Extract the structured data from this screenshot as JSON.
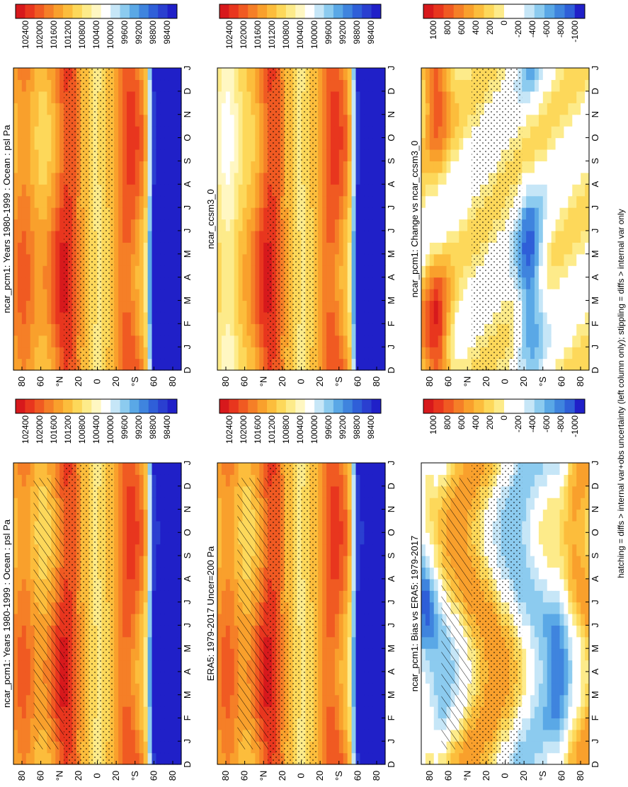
{
  "figure": {
    "footer": "hatching = diffs > internal var+obs uncertainty (left column only); stippling = diffs > internal var only"
  },
  "colors": {
    "abs_scale": [
      "#d7191c",
      "#e8361e",
      "#f05a22",
      "#f57f27",
      "#f9a02c",
      "#fcbd3c",
      "#fdd85a",
      "#fdeb8a",
      "#fff7c2",
      "#ffffff",
      "#c6e6f7",
      "#8ccbef",
      "#5aa8e6",
      "#3f84de",
      "#2f5fd8",
      "#2a3fd0",
      "#2020c8"
    ],
    "diff_scale": [
      "#d7191c",
      "#e8361e",
      "#f05a22",
      "#f57f27",
      "#f9a02c",
      "#fcbd3c",
      "#fdd85a",
      "#fdeb8a",
      "#ffffff",
      "#ffffff",
      "#c6e6f7",
      "#8ccbef",
      "#5aa8e6",
      "#3f84de",
      "#2f5fd8",
      "#2020c8"
    ],
    "text": "#000000",
    "frame": "#000000"
  },
  "chart_data": [
    {
      "id": "p1",
      "type": "heatmap",
      "title": "ncar_pcm1: Years 1980-1999 : Ocean : psl Pa",
      "xlabel": "",
      "ylabel": "",
      "x_ticks": [
        "D",
        "J",
        "F",
        "M",
        "A",
        "M",
        "J",
        "J",
        "A",
        "S",
        "O",
        "N",
        "D",
        "J"
      ],
      "y_ticks": [
        "80",
        "60",
        "°N",
        "20",
        "0",
        "20",
        "°S",
        "60",
        "80"
      ],
      "colorbar": {
        "ticks": [
          "102400",
          "102000",
          "101600",
          "101200",
          "100800",
          "100400",
          "100000",
          "99600",
          "99200",
          "98800",
          "98400"
        ],
        "scale": "abs"
      },
      "field": "abs",
      "variant": 0,
      "hatching": true,
      "stippling": true
    },
    {
      "id": "p2",
      "type": "heatmap",
      "title": "ncar_pcm1: Years 1980-1999 : Ocean : psl Pa",
      "xlabel": "",
      "ylabel": "",
      "x_ticks": [
        "D",
        "J",
        "F",
        "M",
        "A",
        "M",
        "J",
        "J",
        "A",
        "S",
        "O",
        "N",
        "D",
        "J"
      ],
      "y_ticks": [
        "80",
        "60",
        "°N",
        "20",
        "0",
        "20",
        "°S",
        "60",
        "80"
      ],
      "colorbar": {
        "ticks": [
          "102400",
          "102000",
          "101600",
          "101200",
          "100800",
          "100400",
          "100000",
          "99600",
          "99200",
          "98800",
          "98400"
        ],
        "scale": "abs"
      },
      "field": "abs",
      "variant": 1,
      "hatching": false,
      "stippling": true
    },
    {
      "id": "p3",
      "type": "heatmap",
      "title": "ERA5: 1979-2017 Uncer=200 Pa",
      "xlabel": "",
      "ylabel": "",
      "x_ticks": [
        "D",
        "J",
        "F",
        "M",
        "A",
        "M",
        "J",
        "J",
        "A",
        "S",
        "O",
        "N",
        "D",
        "J"
      ],
      "y_ticks": [
        "80",
        "60",
        "°N",
        "20",
        "0",
        "20",
        "°S",
        "60",
        "80"
      ],
      "colorbar": {
        "ticks": [
          "102400",
          "102000",
          "101600",
          "101200",
          "100800",
          "100400",
          "100000",
          "99600",
          "99200",
          "98800",
          "98400"
        ],
        "scale": "abs"
      },
      "field": "abs",
      "variant": 2,
      "hatching": true,
      "stippling": true
    },
    {
      "id": "p4",
      "type": "heatmap",
      "title": "ncar_ccsm3_0",
      "xlabel": "",
      "ylabel": "",
      "x_ticks": [
        "D",
        "J",
        "F",
        "M",
        "A",
        "M",
        "J",
        "J",
        "A",
        "S",
        "O",
        "N",
        "D",
        "J"
      ],
      "y_ticks": [
        "80",
        "60",
        "°N",
        "20",
        "0",
        "20",
        "°S",
        "60",
        "80"
      ],
      "colorbar": {
        "ticks": [
          "102400",
          "102000",
          "101600",
          "101200",
          "100800",
          "100400",
          "100000",
          "99600",
          "99200",
          "98800",
          "98400"
        ],
        "scale": "abs"
      },
      "field": "abs",
      "variant": 3,
      "hatching": false,
      "stippling": true
    },
    {
      "id": "p5",
      "type": "heatmap",
      "title": "ncar_pcm1: Bias vs ERA5: 1979-2017",
      "xlabel": "",
      "ylabel": "",
      "x_ticks": [
        "D",
        "J",
        "F",
        "M",
        "A",
        "M",
        "J",
        "J",
        "A",
        "S",
        "O",
        "N",
        "D",
        "J"
      ],
      "y_ticks": [
        "80",
        "60",
        "°N",
        "20",
        "0",
        "20",
        "°S",
        "60",
        "80"
      ],
      "colorbar": {
        "ticks": [
          "1000",
          "800",
          "600",
          "400",
          "200",
          "0",
          "-200",
          "-400",
          "-600",
          "-800",
          "-1000"
        ],
        "scale": "diff"
      },
      "field": "diff",
      "variant": 4,
      "hatching": true,
      "stippling": true
    },
    {
      "id": "p6",
      "type": "heatmap",
      "title": "ncar_pcm1: Change vs ncar_ccsm3_0",
      "xlabel": "",
      "ylabel": "",
      "x_ticks": [
        "D",
        "J",
        "F",
        "M",
        "A",
        "M",
        "J",
        "J",
        "A",
        "S",
        "O",
        "N",
        "D",
        "J"
      ],
      "y_ticks": [
        "80",
        "60",
        "°N",
        "20",
        "0",
        "20",
        "°S",
        "60",
        "80"
      ],
      "colorbar": {
        "ticks": [
          "1000",
          "800",
          "600",
          "400",
          "200",
          "0",
          "-200",
          "-400",
          "-600",
          "-800",
          "-1000"
        ],
        "scale": "diff"
      },
      "field": "diff",
      "variant": 5,
      "hatching": false,
      "stippling": true
    }
  ]
}
